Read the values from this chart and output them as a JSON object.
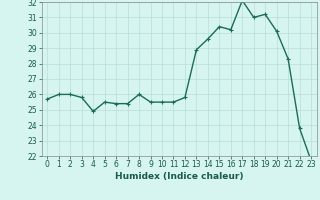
{
  "x": [
    0,
    1,
    2,
    3,
    4,
    5,
    6,
    7,
    8,
    9,
    10,
    11,
    12,
    13,
    14,
    15,
    16,
    17,
    18,
    19,
    20,
    21,
    22,
    23
  ],
  "y": [
    25.7,
    26.0,
    26.0,
    25.8,
    24.9,
    25.5,
    25.4,
    25.4,
    26.0,
    25.5,
    25.5,
    25.5,
    25.8,
    28.9,
    29.6,
    30.4,
    30.2,
    32.1,
    31.0,
    31.2,
    30.1,
    28.3,
    23.8,
    21.7
  ],
  "line_color": "#1a6b5a",
  "marker": "+",
  "marker_size": 3,
  "bg_color": "#d6f5f0",
  "grid_color": "#b8ddd8",
  "xlabel": "Humidex (Indice chaleur)",
  "ylim": [
    22,
    32
  ],
  "xlim_min": -0.5,
  "xlim_max": 23.5,
  "yticks": [
    22,
    23,
    24,
    25,
    26,
    27,
    28,
    29,
    30,
    31,
    32
  ],
  "xticks": [
    0,
    1,
    2,
    3,
    4,
    5,
    6,
    7,
    8,
    9,
    10,
    11,
    12,
    13,
    14,
    15,
    16,
    17,
    18,
    19,
    20,
    21,
    22,
    23
  ],
  "xlabel_fontsize": 6.5,
  "tick_fontsize": 5.5,
  "linewidth": 1.0
}
